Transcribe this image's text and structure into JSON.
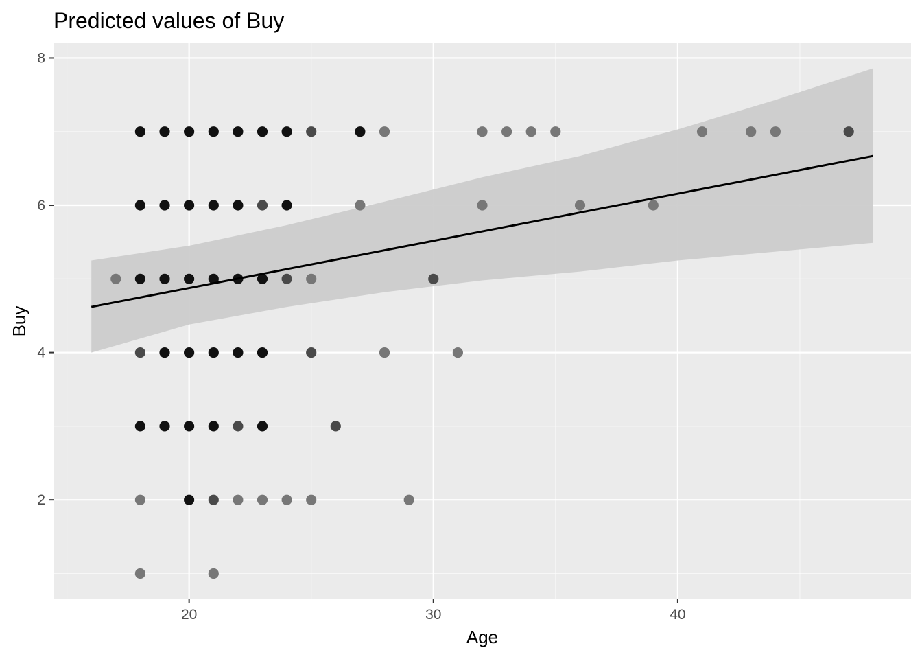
{
  "chart_data": {
    "type": "scatter",
    "title": "Predicted values of Buy",
    "xlabel": "Age",
    "ylabel": "Buy",
    "xlim": [
      14.45,
      49.55
    ],
    "ylim": [
      0.65,
      8.2
    ],
    "x_ticks": [
      20,
      30,
      40
    ],
    "y_ticks": [
      2,
      4,
      6,
      8
    ],
    "x_tick_labels": [
      "20",
      "30",
      "40"
    ],
    "y_tick_labels": [
      "2",
      "4",
      "6",
      "8"
    ],
    "grid": true,
    "legend": "none",
    "colors": {
      "panel": "#ebebeb",
      "grid_major": "#ffffff",
      "ribbon": "#cccccc",
      "line": "#000000",
      "point_dark": "#111111",
      "point_mid": "#4a4a4a",
      "point_light": "#777777"
    },
    "fit_line": {
      "x": [
        16,
        48
      ],
      "y": [
        4.62,
        6.67
      ]
    },
    "confidence_band": {
      "x": [
        16,
        20,
        24,
        28,
        32,
        36,
        40,
        44,
        48
      ],
      "lower": [
        4.0,
        4.38,
        4.62,
        4.82,
        4.98,
        5.1,
        5.25,
        5.37,
        5.49
      ],
      "upper": [
        5.25,
        5.45,
        5.73,
        6.05,
        6.38,
        6.67,
        7.03,
        7.43,
        7.86
      ]
    },
    "series": [
      {
        "x": [
          18,
          19,
          20,
          21,
          22,
          23,
          24,
          25,
          27,
          28,
          32,
          33,
          34,
          35,
          41,
          43,
          44,
          47
        ],
        "y": [
          7,
          7,
          7,
          7,
          7,
          7,
          7,
          7,
          7,
          7,
          7,
          7,
          7,
          7,
          7,
          7,
          7,
          7
        ],
        "shade": [
          "dark",
          "dark",
          "dark",
          "dark",
          "dark",
          "dark",
          "dark",
          "mid",
          "dark",
          "light",
          "light",
          "light",
          "light",
          "light",
          "light",
          "light",
          "light",
          "mid"
        ]
      },
      {
        "x": [
          18,
          19,
          20,
          21,
          22,
          23,
          24,
          27,
          32,
          36,
          39
        ],
        "y": [
          6,
          6,
          6,
          6,
          6,
          6,
          6,
          6,
          6,
          6,
          6
        ],
        "shade": [
          "dark",
          "dark",
          "dark",
          "dark",
          "dark",
          "mid",
          "dark",
          "light",
          "light",
          "light",
          "light"
        ]
      },
      {
        "x": [
          17,
          18,
          19,
          20,
          21,
          22,
          23,
          24,
          25,
          30
        ],
        "y": [
          5,
          5,
          5,
          5,
          5,
          5,
          5,
          5,
          5,
          5
        ],
        "shade": [
          "light",
          "dark",
          "dark",
          "dark",
          "dark",
          "dark",
          "dark",
          "mid",
          "light",
          "mid"
        ]
      },
      {
        "x": [
          18,
          19,
          20,
          21,
          22,
          23,
          25,
          28,
          31
        ],
        "y": [
          4,
          4,
          4,
          4,
          4,
          4,
          4,
          4,
          4
        ],
        "shade": [
          "mid",
          "dark",
          "dark",
          "dark",
          "dark",
          "dark",
          "mid",
          "light",
          "light"
        ]
      },
      {
        "x": [
          18,
          19,
          20,
          21,
          22,
          23,
          26
        ],
        "y": [
          3,
          3,
          3,
          3,
          3,
          3,
          3
        ],
        "shade": [
          "dark",
          "dark",
          "dark",
          "dark",
          "mid",
          "dark",
          "mid"
        ]
      },
      {
        "x": [
          18,
          20,
          21,
          22,
          23,
          24,
          25,
          29
        ],
        "y": [
          2,
          2,
          2,
          2,
          2,
          2,
          2,
          2
        ],
        "shade": [
          "light",
          "dark",
          "mid",
          "light",
          "light",
          "light",
          "light",
          "light"
        ]
      },
      {
        "x": [
          18,
          21
        ],
        "y": [
          1,
          1
        ],
        "shade": [
          "light",
          "light"
        ]
      }
    ]
  }
}
